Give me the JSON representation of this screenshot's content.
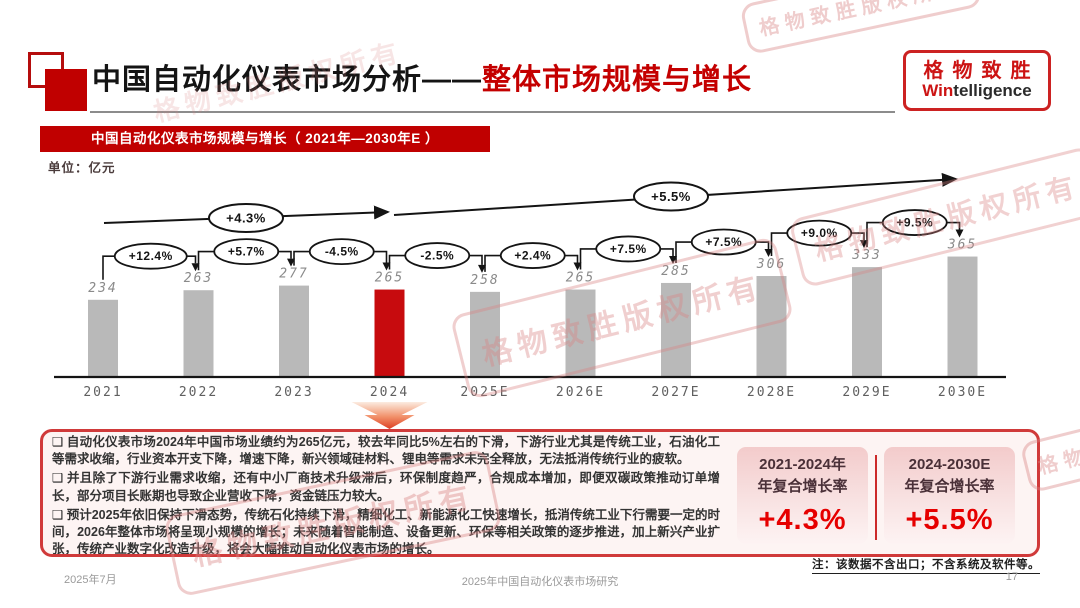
{
  "header": {
    "title_black": "中国自动化仪表市场分析——",
    "title_red": "整体市场规模与增长",
    "logo_cn": "格物致胜",
    "logo_en_red": "Win",
    "logo_en_dark": "telligence"
  },
  "banner": {
    "label": "中国自动化仪表市场规模与增长（ 2021年—2030年E ）"
  },
  "unit_label": "单位：亿元",
  "chart_data": {
    "type": "bar",
    "title": "中国自动化仪表市场规模与增长（2021年—2030年E）",
    "ylabel": "亿元",
    "xlabel": "",
    "categories": [
      "2021",
      "2022",
      "2023",
      "2024",
      "2025E",
      "2026E",
      "2027E",
      "2028E",
      "2029E",
      "2030E"
    ],
    "values": [
      234,
      263,
      277,
      265,
      258,
      265,
      285,
      306,
      333,
      365
    ],
    "highlight_index": 3,
    "yoy_growth": [
      "+12.4%",
      "+5.7%",
      "-4.5%",
      "-2.5%",
      "+2.4%",
      "+7.5%",
      "+7.5%",
      "+9.0%",
      "+9.5%"
    ],
    "cagr_arrows": [
      {
        "label": "+4.3%",
        "span": "2021-2024"
      },
      {
        "label": "+5.5%",
        "span": "2024-2030E"
      }
    ],
    "bar_color": "#b9b9b9",
    "highlight_color": "#c70b0e",
    "grid": false,
    "legend": false,
    "value_labels": "above-bars"
  },
  "analysis": {
    "bullets": [
      "自动化仪表市场2024年中国市场业绩约为265亿元，较去年同比5%左右的下滑，下游行业尤其是传统工业，石油化工等需求收缩，行业资本开支下降，增速下降，新兴领域硅材料、锂电等需求未完全释放，无法抵消传统行业的疲软。",
      "并且除了下游行业需求收缩，还有中小厂商技术升级滞后，环保制度趋严，合规成本增加，即便双碳政策推动订单增长，部分项目长账期也导致企业营收下降，资金链压力较大。",
      "预计2025年依旧保持下滑态势，传统石化持续下滑，精细化工、新能源化工快速增长，抵消传统工业下行需要一定的时间，2026年整体市场将呈现小规模的增长；未来随着智能制造、设备更新、环保等相关政策的逐步推进，加上新兴产业扩张，传统产业数字化改造升级，将会大幅推动自动化仪表市场的增长。"
    ]
  },
  "cagr_boxes": [
    {
      "period": "2021-2024年",
      "label": "年复合增长率",
      "value": "+4.3%"
    },
    {
      "period": "2024-2030E",
      "label": "年复合增长率",
      "value": "+5.5%"
    }
  ],
  "note": "注：该数据不含出口；不含系统及软件等。",
  "footer": {
    "date": "2025年7月",
    "center": "2025年中国自动化仪表市场研究",
    "page": "17"
  },
  "watermark": {
    "text": "格物致胜版权所有"
  },
  "colors": {
    "accent_red": "#c00000",
    "bar_gray": "#b9b9b9",
    "bar_red": "#c70b0e",
    "box_border": "#d03a3a",
    "card_pink": "#f3cbcb",
    "value_red": "#e60000",
    "watermark_pink": "#d98383"
  }
}
